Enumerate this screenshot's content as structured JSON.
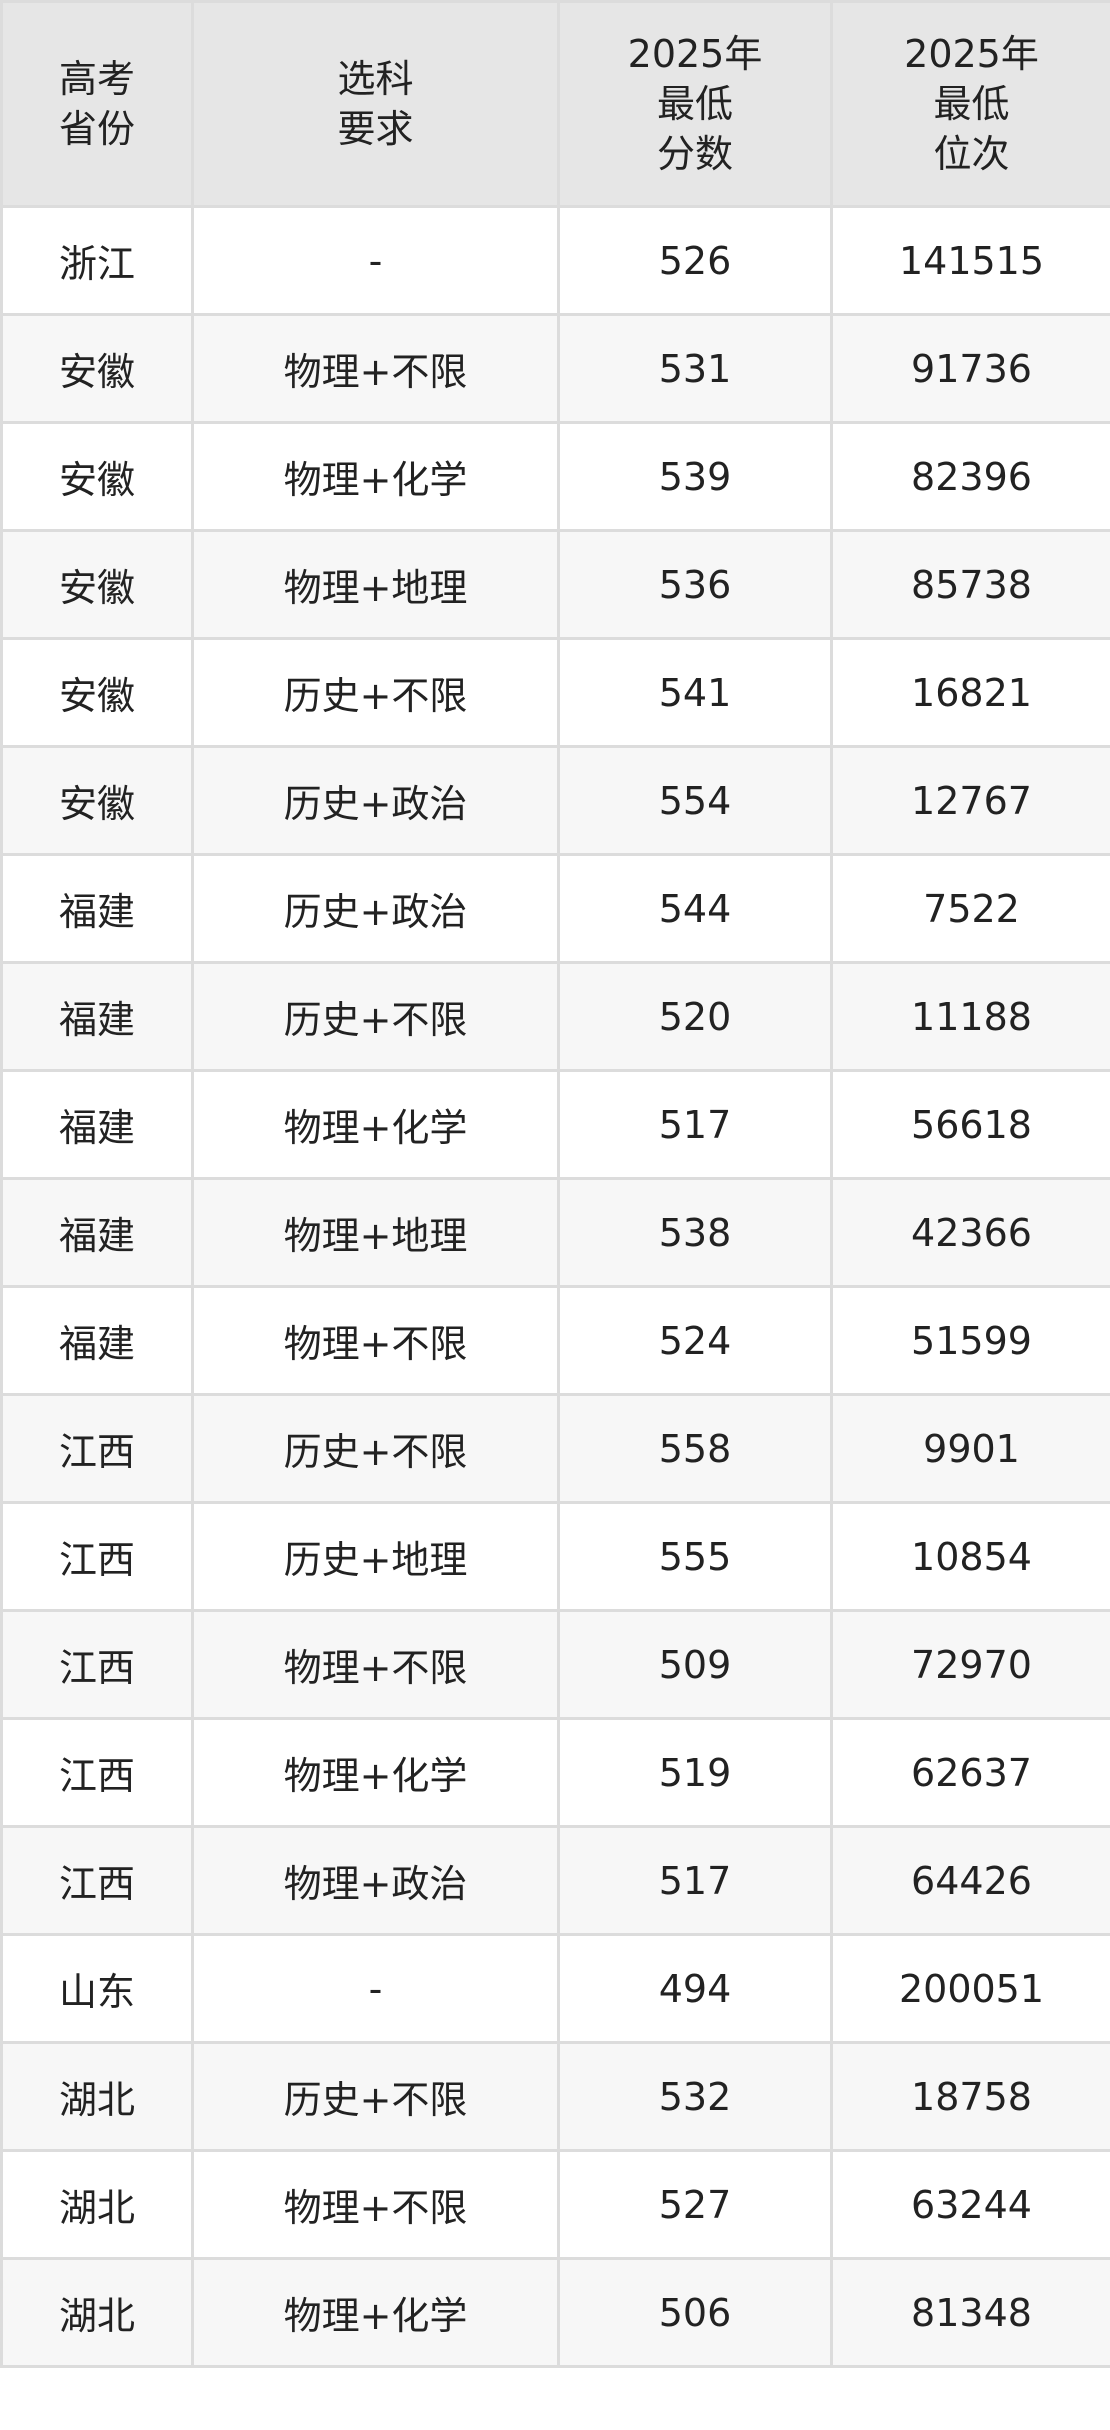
{
  "table": {
    "headers": [
      [
        "高考",
        "省份"
      ],
      [
        "选科",
        "要求"
      ],
      [
        "2025年",
        "最低",
        "分数"
      ],
      [
        "2025年",
        "最低",
        "位次"
      ]
    ],
    "rows": [
      [
        "浙江",
        "-",
        "526",
        "141515"
      ],
      [
        "安徽",
        "物理+不限",
        "531",
        "91736"
      ],
      [
        "安徽",
        "物理+化学",
        "539",
        "82396"
      ],
      [
        "安徽",
        "物理+地理",
        "536",
        "85738"
      ],
      [
        "安徽",
        "历史+不限",
        "541",
        "16821"
      ],
      [
        "安徽",
        "历史+政治",
        "554",
        "12767"
      ],
      [
        "福建",
        "历史+政治",
        "544",
        "7522"
      ],
      [
        "福建",
        "历史+不限",
        "520",
        "11188"
      ],
      [
        "福建",
        "物理+化学",
        "517",
        "56618"
      ],
      [
        "福建",
        "物理+地理",
        "538",
        "42366"
      ],
      [
        "福建",
        "物理+不限",
        "524",
        "51599"
      ],
      [
        "江西",
        "历史+不限",
        "558",
        "9901"
      ],
      [
        "江西",
        "历史+地理",
        "555",
        "10854"
      ],
      [
        "江西",
        "物理+不限",
        "509",
        "72970"
      ],
      [
        "江西",
        "物理+化学",
        "519",
        "62637"
      ],
      [
        "江西",
        "物理+政治",
        "517",
        "64426"
      ],
      [
        "山东",
        "-",
        "494",
        "200051"
      ],
      [
        "湖北",
        "历史+不限",
        "532",
        "18758"
      ],
      [
        "湖北",
        "物理+不限",
        "527",
        "63244"
      ],
      [
        "湖北",
        "物理+化学",
        "506",
        "81348"
      ]
    ]
  }
}
